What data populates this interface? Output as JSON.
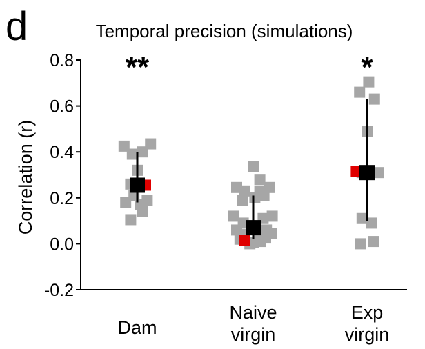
{
  "panel_letter": "d",
  "chart_data": {
    "type": "scatter",
    "title": "Temporal precision (simulations)",
    "ylabel": "Correlation (r)",
    "xlabel": "",
    "ylim": [
      -0.2,
      0.8
    ],
    "yticks": [
      -0.2,
      0.0,
      0.2,
      0.4,
      0.6,
      0.8
    ],
    "ytick_labels": [
      "-0.2",
      "0.0",
      "0.2",
      "0.4",
      "0.6",
      "0.8"
    ],
    "grid": false,
    "categories": [
      {
        "label_lines": [
          "Dam"
        ],
        "significance": "**"
      },
      {
        "label_lines": [
          "Naive",
          "virgin"
        ],
        "significance": ""
      },
      {
        "label_lines": [
          "Exp",
          "virgin"
        ],
        "significance": "*"
      }
    ],
    "colors": {
      "points": "#a6a6a6",
      "highlight": "#e00000",
      "mean": "#000000"
    },
    "groups": [
      {
        "category": "Dam",
        "points": [
          {
            "dx": -1.6,
            "y": 0.425
          },
          {
            "dx": -0.6,
            "y": 0.39
          },
          {
            "dx": 0.6,
            "y": 0.4
          },
          {
            "dx": 1.6,
            "y": 0.435
          },
          {
            "dx": 0.0,
            "y": 0.32
          },
          {
            "dx": -0.8,
            "y": 0.26
          },
          {
            "dx": -1.4,
            "y": 0.18
          },
          {
            "dx": -0.4,
            "y": 0.21
          },
          {
            "dx": 0.4,
            "y": 0.17
          },
          {
            "dx": 1.2,
            "y": 0.19
          },
          {
            "dx": 0.6,
            "y": 0.14
          },
          {
            "dx": -0.8,
            "y": 0.105
          }
        ],
        "highlight": {
          "dx": 1.0,
          "y": 0.255
        },
        "mean": 0.255,
        "error": [
          0.18,
          0.4
        ]
      },
      {
        "category": "Naive virgin",
        "points": [
          {
            "dx": 0.0,
            "y": 0.335
          },
          {
            "dx": 0.8,
            "y": 0.28
          },
          {
            "dx": -2.0,
            "y": 0.245
          },
          {
            "dx": -1.0,
            "y": 0.23
          },
          {
            "dx": 0.8,
            "y": 0.23
          },
          {
            "dx": 2.0,
            "y": 0.245
          },
          {
            "dx": -1.3,
            "y": 0.19
          },
          {
            "dx": 0.2,
            "y": 0.2
          },
          {
            "dx": 1.3,
            "y": 0.21
          },
          {
            "dx": -2.4,
            "y": 0.12
          },
          {
            "dx": -1.2,
            "y": 0.09
          },
          {
            "dx": 1.2,
            "y": 0.11
          },
          {
            "dx": 2.3,
            "y": 0.12
          },
          {
            "dx": -2.0,
            "y": 0.06
          },
          {
            "dx": -1.0,
            "y": 0.04
          },
          {
            "dx": 0.6,
            "y": 0.05
          },
          {
            "dx": 1.6,
            "y": 0.06
          },
          {
            "dx": 2.2,
            "y": 0.045
          },
          {
            "dx": -1.6,
            "y": 0.02
          },
          {
            "dx": 0.0,
            "y": 0.005
          },
          {
            "dx": 0.9,
            "y": 0.01
          },
          {
            "dx": 1.5,
            "y": 0.025
          },
          {
            "dx": -0.4,
            "y": 0.0
          }
        ],
        "highlight": {
          "dx": -1.0,
          "y": 0.015
        },
        "mean": 0.07,
        "error": [
          0.02,
          0.21
        ]
      },
      {
        "category": "Exp virgin",
        "points": [
          {
            "dx": 0.2,
            "y": 0.705
          },
          {
            "dx": -0.9,
            "y": 0.66
          },
          {
            "dx": 0.9,
            "y": 0.63
          },
          {
            "dx": 0.0,
            "y": 0.49
          },
          {
            "dx": 1.4,
            "y": 0.31
          },
          {
            "dx": -0.6,
            "y": 0.31
          },
          {
            "dx": -0.6,
            "y": 0.11
          },
          {
            "dx": 0.5,
            "y": 0.09
          },
          {
            "dx": -0.8,
            "y": 0.0
          },
          {
            "dx": 0.8,
            "y": 0.01
          }
        ],
        "highlight": {
          "dx": -1.3,
          "y": 0.315
        },
        "mean": 0.31,
        "error": [
          0.1,
          0.63
        ]
      }
    ]
  }
}
